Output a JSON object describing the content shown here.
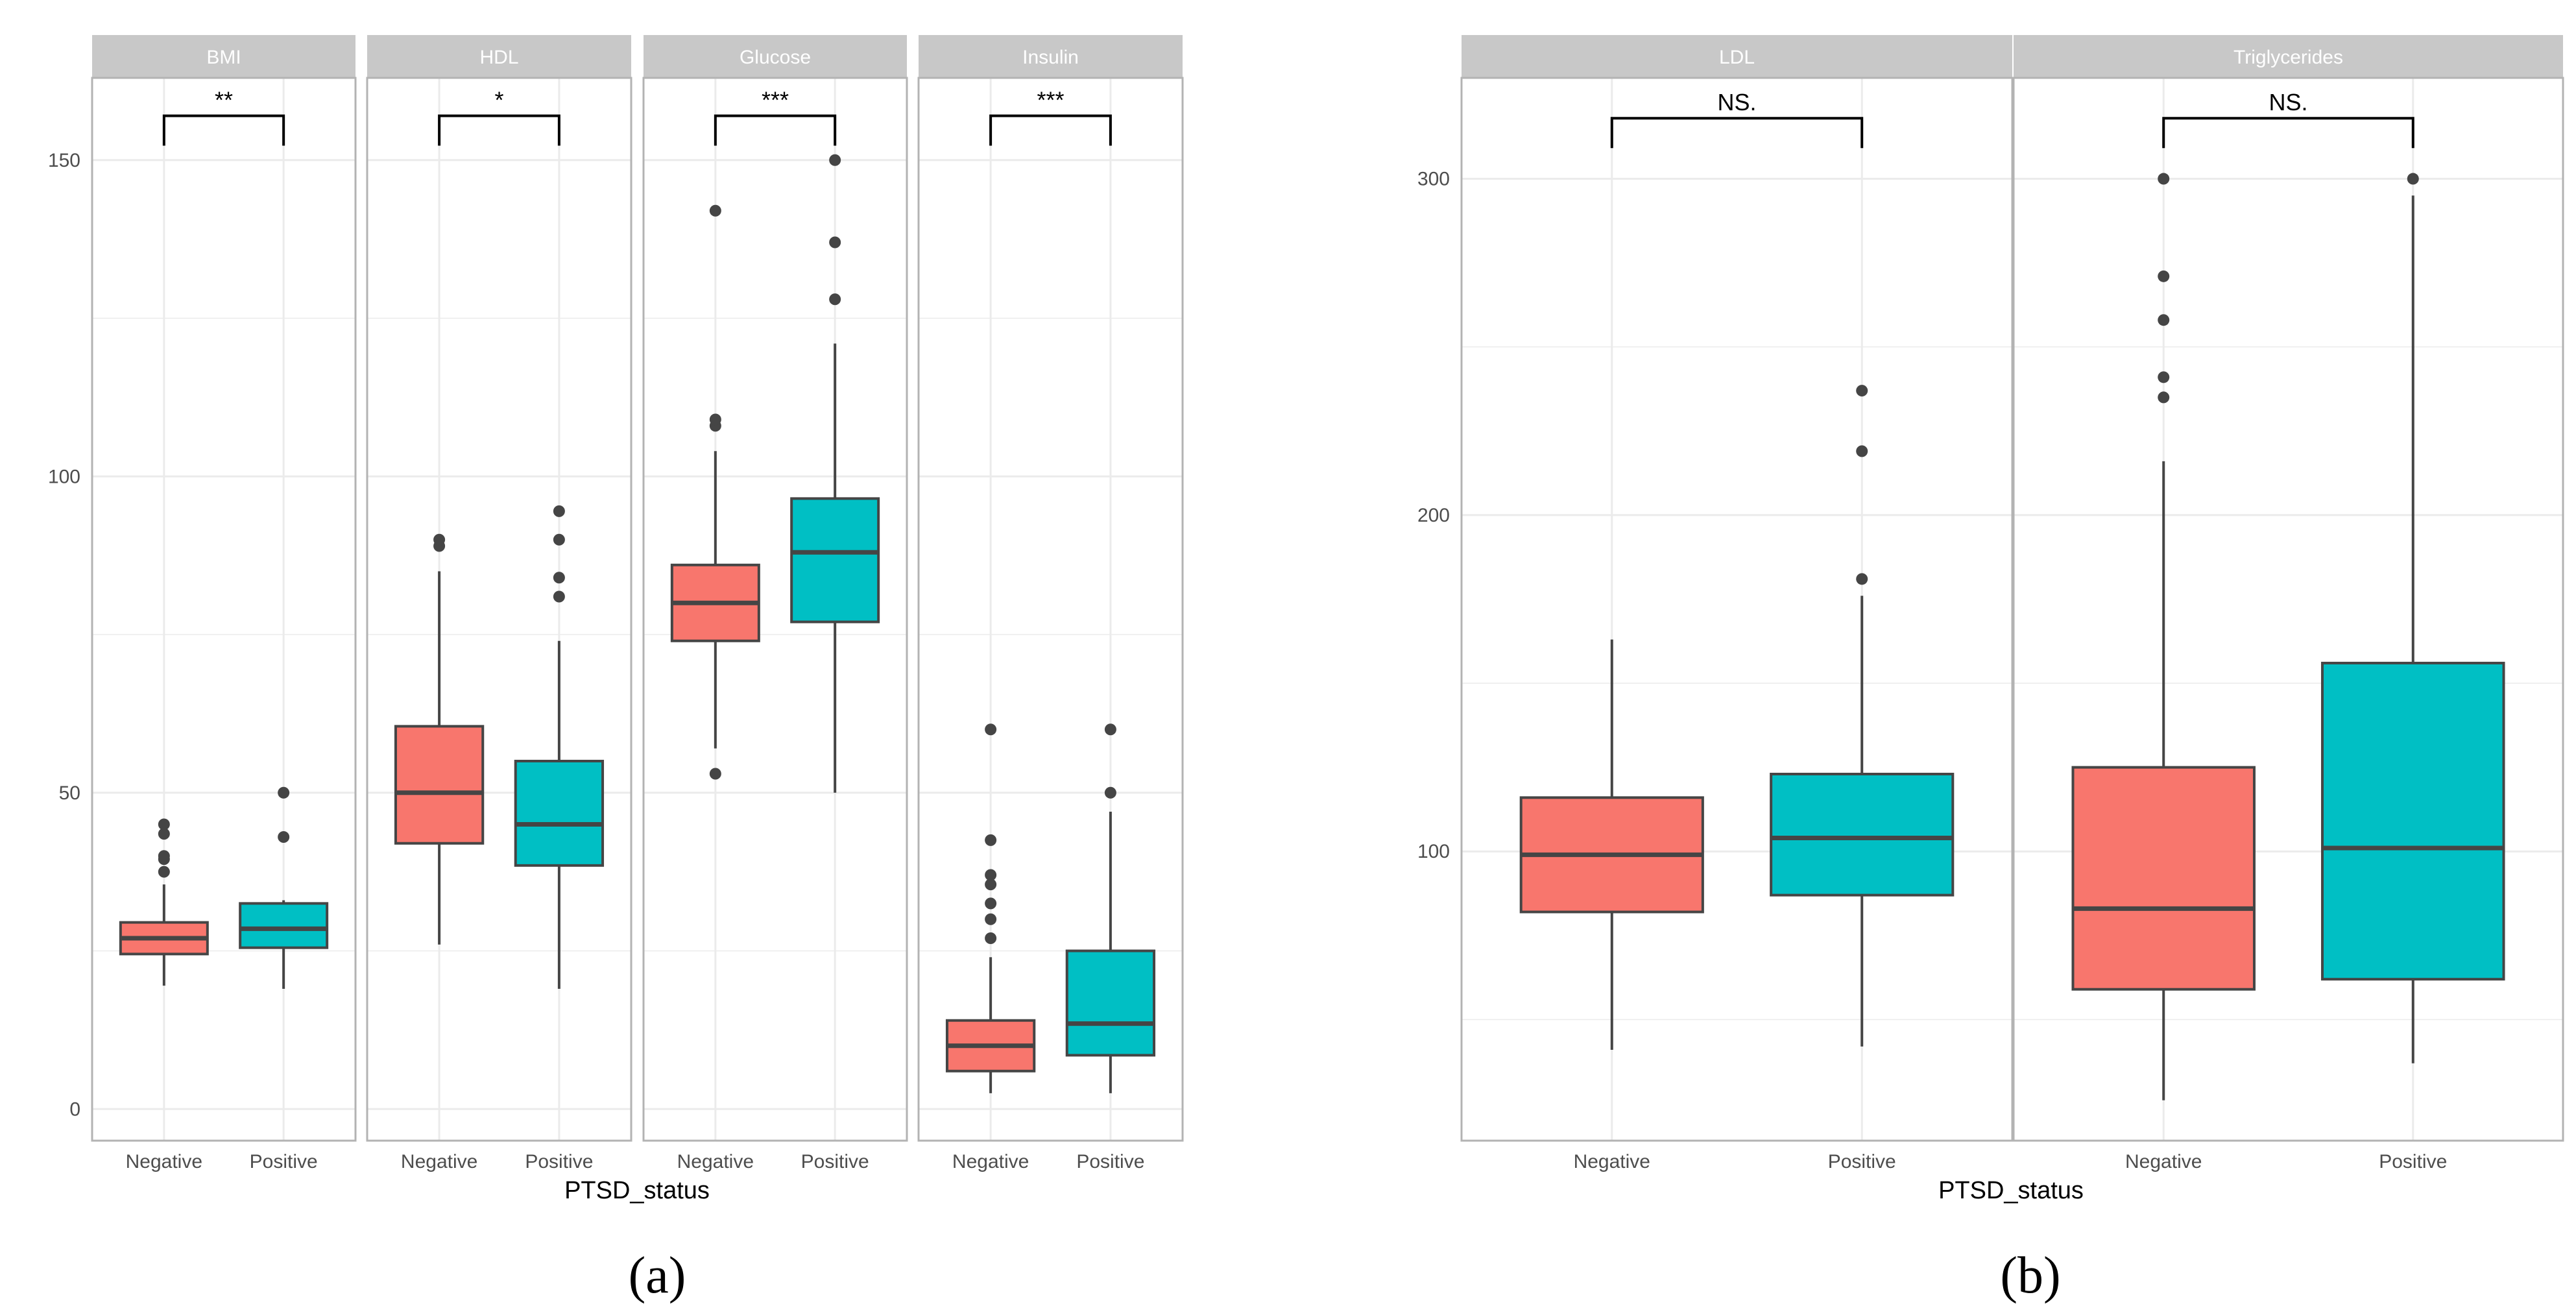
{
  "figure": {
    "panel_labels": {
      "a": "(a)",
      "b": "(b)"
    }
  },
  "colors": {
    "negative": "#F8766D",
    "positive": "#00BFC4",
    "strip_bg": "#C8C8C8",
    "grid": "#EBEBEB",
    "border": "#B3B3B3",
    "box_line": "#454545",
    "outlier": "#454545"
  },
  "chart_data": [
    {
      "id": "a",
      "type": "box",
      "xlabel": "PTSD_status",
      "ylabel": "",
      "categories": [
        "Negative",
        "Positive"
      ],
      "ylim": [
        -5,
        163
      ],
      "yticks": [
        0,
        50,
        100,
        150
      ],
      "ygrid_minor": [
        25,
        75,
        125
      ],
      "facets": [
        {
          "title": "BMI",
          "significance": "**",
          "bracket_y": 157,
          "boxes": [
            {
              "group": "Negative",
              "min": 19.5,
              "q1": 24.5,
              "median": 27.0,
              "q3": 29.5,
              "max": 35.5,
              "outliers": [
                37.5,
                39.5,
                40.0,
                43.5,
                45.0
              ]
            },
            {
              "group": "Positive",
              "min": 19.0,
              "q1": 25.5,
              "median": 28.5,
              "q3": 32.5,
              "max": 33.0,
              "outliers": [
                43.0,
                50.0
              ]
            }
          ]
        },
        {
          "title": "HDL",
          "significance": "*",
          "bracket_y": 157,
          "boxes": [
            {
              "group": "Negative",
              "min": 26.0,
              "q1": 42.0,
              "median": 50.0,
              "q3": 60.5,
              "max": 85.0,
              "outliers": [
                89.0,
                90.0
              ]
            },
            {
              "group": "Positive",
              "min": 19.0,
              "q1": 38.5,
              "median": 45.0,
              "q3": 55.0,
              "max": 74.0,
              "outliers": [
                81.0,
                84.0,
                90.0,
                94.5
              ]
            }
          ]
        },
        {
          "title": "Glucose",
          "significance": "***",
          "bracket_y": 157,
          "boxes": [
            {
              "group": "Negative",
              "min": 57.0,
              "q1": 74.0,
              "median": 80.0,
              "q3": 86.0,
              "max": 104.0,
              "outliers": [
                53.0,
                108.0,
                109.0,
                142.0
              ]
            },
            {
              "group": "Positive",
              "min": 50.0,
              "q1": 77.0,
              "median": 88.0,
              "q3": 96.5,
              "max": 121.0,
              "outliers": [
                128.0,
                137.0,
                150.0
              ]
            }
          ]
        },
        {
          "title": "Insulin",
          "significance": "***",
          "bracket_y": 157,
          "boxes": [
            {
              "group": "Negative",
              "min": 2.5,
              "q1": 6.0,
              "median": 10.0,
              "q3": 14.0,
              "max": 24.0,
              "outliers": [
                27.0,
                30.0,
                32.5,
                35.5,
                37.0,
                42.5,
                60.0
              ]
            },
            {
              "group": "Positive",
              "min": 2.5,
              "q1": 8.5,
              "median": 13.5,
              "q3": 25.0,
              "max": 47.0,
              "outliers": [
                50.0,
                60.0
              ]
            }
          ]
        }
      ]
    },
    {
      "id": "b",
      "type": "box",
      "xlabel": "PTSD_status",
      "ylabel": "",
      "categories": [
        "Negative",
        "Positive"
      ],
      "ylim": [
        14,
        330
      ],
      "yticks": [
        100,
        200,
        300
      ],
      "ygrid_minor": [
        50,
        150,
        250
      ],
      "facets": [
        {
          "title": "LDL",
          "significance": "NS.",
          "bracket_y": 318,
          "boxes": [
            {
              "group": "Negative",
              "min": 41.0,
              "q1": 82.0,
              "median": 99.0,
              "q3": 116.0,
              "max": 163.0,
              "outliers": []
            },
            {
              "group": "Positive",
              "min": 42.0,
              "q1": 87.0,
              "median": 104.0,
              "q3": 123.0,
              "max": 176.0,
              "outliers": [
                181.0,
                219.0,
                237.0
              ]
            }
          ]
        },
        {
          "title": "Triglycerides",
          "significance": "NS.",
          "bracket_y": 318,
          "boxes": [
            {
              "group": "Negative",
              "min": 26.0,
              "q1": 59.0,
              "median": 83.0,
              "q3": 125.0,
              "max": 216.0,
              "outliers": [
                235.0,
                241.0,
                258.0,
                271.0,
                300.0
              ]
            },
            {
              "group": "Positive",
              "min": 37.0,
              "q1": 62.0,
              "median": 101.0,
              "q3": 156.0,
              "max": 295.0,
              "outliers": [
                300.0
              ]
            }
          ]
        }
      ]
    }
  ]
}
